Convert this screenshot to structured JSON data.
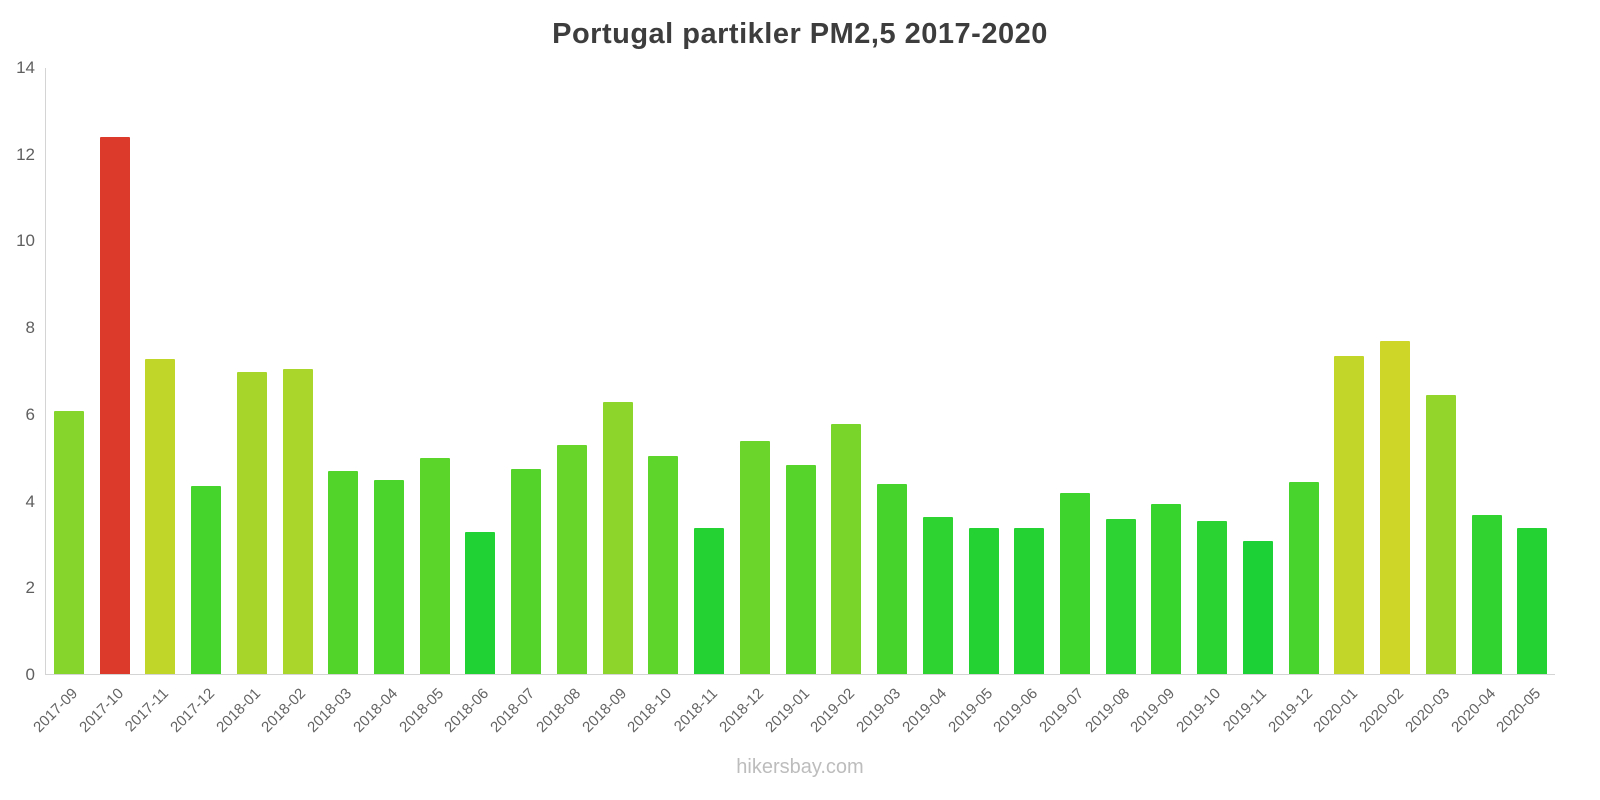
{
  "title": "Portugal partikler PM2,5 2017-2020",
  "watermark": "hikersbay.com",
  "chart_data": {
    "type": "bar",
    "title": "Portugal partikler PM2,5 2017-2020",
    "xlabel": "",
    "ylabel": "",
    "ylim": [
      0,
      14
    ],
    "ytick_step": 2,
    "grid": false,
    "legend": false,
    "categories": [
      "2017-09",
      "2017-10",
      "2017-11",
      "2017-12",
      "2018-01",
      "2018-02",
      "2018-03",
      "2018-04",
      "2018-05",
      "2018-06",
      "2018-07",
      "2018-08",
      "2018-09",
      "2018-10",
      "2018-11",
      "2018-12",
      "2019-01",
      "2019-02",
      "2019-03",
      "2019-04",
      "2019-05",
      "2019-06",
      "2019-07",
      "2019-08",
      "2019-09",
      "2019-10",
      "2019-11",
      "2019-12",
      "2020-01",
      "2020-02",
      "2020-03",
      "2020-04",
      "2020-05"
    ],
    "values": [
      6.1,
      12.4,
      7.3,
      4.35,
      7.0,
      7.05,
      4.7,
      4.5,
      5.0,
      3.3,
      4.75,
      5.3,
      6.3,
      5.05,
      3.4,
      5.4,
      4.85,
      5.8,
      4.4,
      3.65,
      3.4,
      3.4,
      4.2,
      3.6,
      3.95,
      3.55,
      3.1,
      4.45,
      7.35,
      7.7,
      6.45,
      3.7,
      3.4
    ],
    "colors": [
      "#86d52c",
      "#dc3b2b",
      "#c0d629",
      "#44d42c",
      "#a8d52a",
      "#aad52a",
      "#52d42b",
      "#4ad42c",
      "#5cd52b",
      "#21d234",
      "#54d42b",
      "#68d52b",
      "#8dd52b",
      "#5ed52b",
      "#25d233",
      "#6cd52b",
      "#57d42b",
      "#7ad52b",
      "#46d42c",
      "#2fd331",
      "#25d233",
      "#25d233",
      "#3fd42d",
      "#2dd332",
      "#38d42e",
      "#2bd332",
      "#1bd136",
      "#48d42c",
      "#c2d629",
      "#ced728",
      "#93d52a",
      "#31d330",
      "#25d233"
    ],
    "bar_colors_meaning": {
      "low_green": "#25d233",
      "mid_green": "#5cd52b",
      "yellow_green": "#a8d52a",
      "yellow": "#ced728",
      "red_peak": "#dc3b2b"
    }
  }
}
